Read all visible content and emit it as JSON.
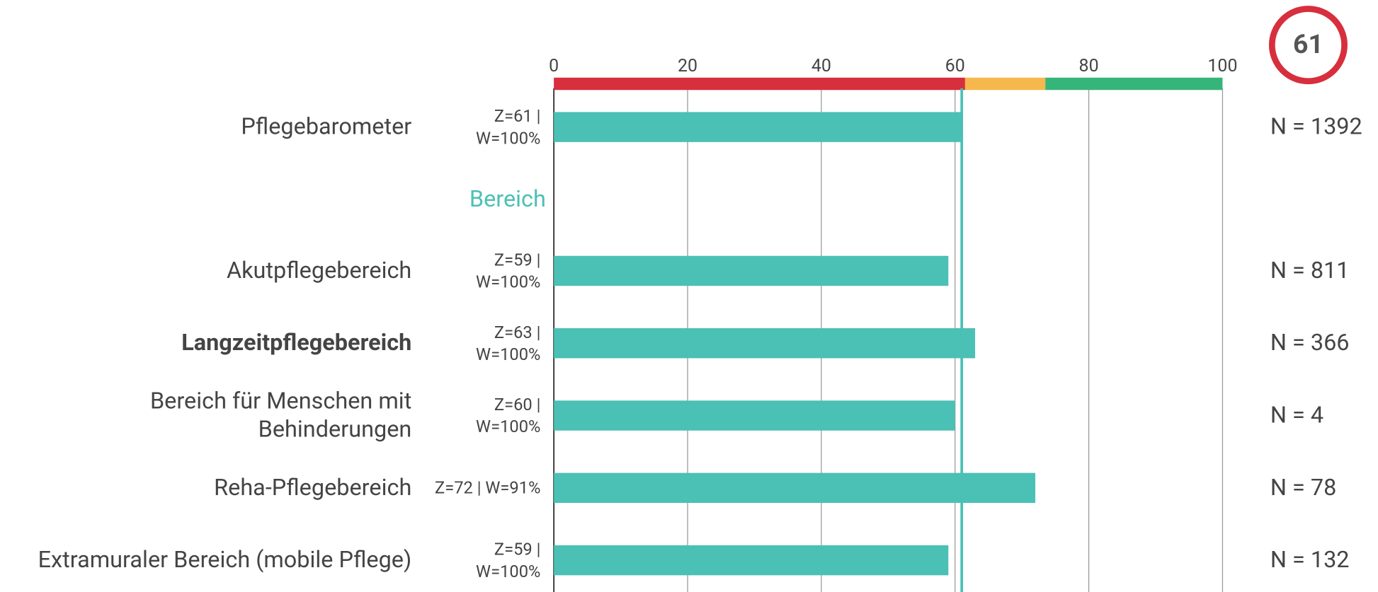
{
  "chart_data": {
    "type": "bar",
    "orientation": "horizontal",
    "categories": [
      "Pflegebarometer",
      "Akutpflegebereich",
      "Langzeitpflegebereich",
      "Bereich für Menschen mit Behinderungen",
      "Reha-Pflegebereich",
      "Extramuraler Bereich (mobile Pflege)"
    ],
    "values": [
      61,
      59,
      63,
      60,
      72,
      59
    ],
    "value_labels": [
      "Z=61 | W=100%",
      "Z=59 | W=100%",
      "Z=63 | W=100%",
      "Z=60 | W=100%",
      "Z=72 | W=91%",
      "Z=59 | W=100%"
    ],
    "n_labels": [
      "N = 1392",
      "N = 811",
      "N = 366",
      "N = 4",
      "N = 78",
      "N = 132"
    ],
    "section_label": "Bereich",
    "bold_index": 2,
    "color": "#4bc0b5",
    "xlim": [
      0,
      100
    ],
    "xticks": [
      0,
      20,
      40,
      60,
      80,
      100
    ],
    "grid": true,
    "score": 61,
    "score_color": "#d72f3d",
    "bands": [
      {
        "from": 0,
        "to": 61.5,
        "color": "#d72f3d"
      },
      {
        "from": 61.5,
        "to": 73.5,
        "color": "#f6b84c"
      },
      {
        "from": 73.5,
        "to": 100,
        "color": "#35b57a"
      }
    ]
  }
}
